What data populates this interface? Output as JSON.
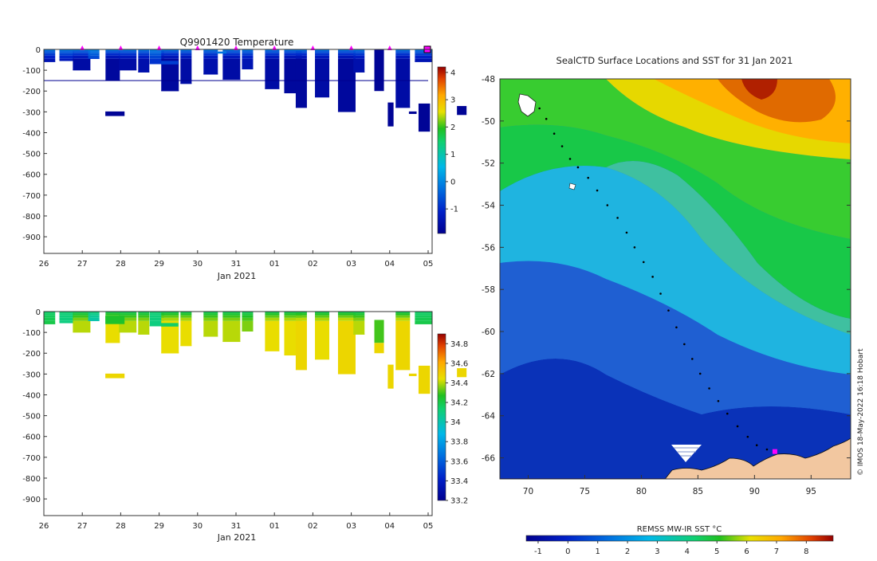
{
  "chart_data": [
    {
      "type": "heatmap",
      "panel": "temperature-profile",
      "title": "Q9901420  Temperature",
      "xlabel": "Jan 2021",
      "x_ticks": [
        "26",
        "27",
        "28",
        "29",
        "30",
        "31",
        "01",
        "02",
        "03",
        "04",
        "05"
      ],
      "y_ticks": [
        0,
        -100,
        -200,
        -300,
        -400,
        -500,
        -600,
        -700,
        -800,
        -900
      ],
      "ylim": [
        -980,
        0
      ],
      "colorbar": {
        "ticks": [
          "-1",
          "0",
          "1",
          "2",
          "3",
          "4"
        ],
        "range": [
          -1.9,
          4.2
        ]
      },
      "profile_markers_day": [
        1,
        2,
        3,
        4,
        5,
        6,
        7,
        8,
        9,
        10
      ],
      "profiles": [
        {
          "day": 0.15,
          "bottom": -60,
          "value": -1.4
        },
        {
          "day": 0.55,
          "bottom": -55,
          "value": -1.3
        },
        {
          "day": 0.9,
          "bottom": -100,
          "value": -1.6
        },
        {
          "day": 1.3,
          "bottom": -45,
          "value": -0.8
        },
        {
          "day": 1.75,
          "bottom": -150,
          "value": -1.7
        },
        {
          "day": 2.1,
          "bottom": -100,
          "value": -1.6
        },
        {
          "day": 2.6,
          "bottom": -110,
          "value": -1.5
        },
        {
          "day": 2.9,
          "bottom": -70,
          "value": -0.9
        },
        {
          "day": 3.2,
          "bottom": -200,
          "value": -1.7
        },
        {
          "day": 3.7,
          "bottom": -165,
          "value": -1.6
        },
        {
          "day": 4.3,
          "bottom": -120,
          "value": -1.5
        },
        {
          "day": 4.8,
          "bottom": -145,
          "value": -1.6
        },
        {
          "day": 5.3,
          "bottom": -95,
          "value": -1.4
        },
        {
          "day": 5.9,
          "bottom": -190,
          "value": -1.6
        },
        {
          "day": 6.4,
          "bottom": -210,
          "value": -1.7
        },
        {
          "day": 6.7,
          "bottom": -280,
          "value": -1.7
        },
        {
          "day": 7.2,
          "bottom": -230,
          "value": -1.6
        },
        {
          "day": 7.8,
          "bottom": -300,
          "value": -1.7
        },
        {
          "day": 8.2,
          "bottom": -110,
          "value": -1.5
        },
        {
          "day": 9.3,
          "bottom": -280,
          "value": -1.6
        },
        {
          "day": 9.8,
          "bottom": -60,
          "value": -1.4
        }
      ],
      "blocks": [
        {
          "day0": 1.6,
          "day1": 2.1,
          "top": -298,
          "bottom": -320,
          "value": -1.8
        },
        {
          "day0": 8.6,
          "day1": 8.85,
          "top": 0,
          "bottom": -200,
          "value": -1.8
        },
        {
          "day0": 8.95,
          "day1": 9.1,
          "top": -255,
          "bottom": -370,
          "value": -1.8
        },
        {
          "day0": 9.5,
          "day1": 9.7,
          "top": -298,
          "bottom": -310,
          "value": -1.8
        },
        {
          "day0": 9.75,
          "day1": 10.05,
          "top": -260,
          "bottom": -395,
          "value": -1.8
        },
        {
          "day0": 10.75,
          "day1": 11.0,
          "top": -272,
          "bottom": -315,
          "value": -1.8
        },
        {
          "day0": 4.5,
          "day1": 4.75,
          "top": -10,
          "bottom": -20,
          "value": -0.2
        },
        {
          "day0": 3.05,
          "day1": 3.5,
          "top": -55,
          "bottom": -72,
          "value": -0.8
        }
      ],
      "reference_line_depth": -150
    },
    {
      "type": "heatmap",
      "panel": "salinity-profile",
      "xlabel": "Jan 2021",
      "x_ticks": [
        "26",
        "27",
        "28",
        "29",
        "30",
        "31",
        "01",
        "02",
        "03",
        "04",
        "05"
      ],
      "y_ticks": [
        0,
        -100,
        -200,
        -300,
        -400,
        -500,
        -600,
        -700,
        -800,
        -900
      ],
      "ylim": [
        -980,
        0
      ],
      "colorbar": {
        "ticks": [
          "33.2",
          "33.4",
          "33.6",
          "33.8",
          "34",
          "34.2",
          "34.4",
          "34.6",
          "34.8"
        ],
        "range": [
          33.2,
          34.9
        ]
      },
      "profiles": [
        {
          "day": 0.15,
          "bottom": -60,
          "value": 34.2
        },
        {
          "day": 0.55,
          "bottom": -55,
          "value": 34.1
        },
        {
          "day": 0.9,
          "bottom": -100,
          "value": 34.4
        },
        {
          "day": 1.3,
          "bottom": -45,
          "value": 34.0
        },
        {
          "day": 1.75,
          "bottom": -150,
          "value": 34.45
        },
        {
          "day": 2.1,
          "bottom": -100,
          "value": 34.4
        },
        {
          "day": 2.6,
          "bottom": -110,
          "value": 34.4
        },
        {
          "day": 2.9,
          "bottom": -70,
          "value": 34.1
        },
        {
          "day": 3.2,
          "bottom": -200,
          "value": 34.45
        },
        {
          "day": 3.7,
          "bottom": -165,
          "value": 34.45
        },
        {
          "day": 4.3,
          "bottom": -120,
          "value": 34.4
        },
        {
          "day": 4.8,
          "bottom": -145,
          "value": 34.4
        },
        {
          "day": 5.3,
          "bottom": -95,
          "value": 34.35
        },
        {
          "day": 5.9,
          "bottom": -190,
          "value": 34.45
        },
        {
          "day": 6.4,
          "bottom": -210,
          "value": 34.45
        },
        {
          "day": 6.7,
          "bottom": -280,
          "value": 34.47
        },
        {
          "day": 7.2,
          "bottom": -230,
          "value": 34.45
        },
        {
          "day": 7.8,
          "bottom": -300,
          "value": 34.47
        },
        {
          "day": 8.2,
          "bottom": -110,
          "value": 34.4
        },
        {
          "day": 9.3,
          "bottom": -280,
          "value": 34.47
        },
        {
          "day": 9.8,
          "bottom": -60,
          "value": 34.2
        }
      ],
      "blocks": [
        {
          "day0": 1.6,
          "day1": 2.1,
          "top": -298,
          "bottom": -320,
          "value": 34.47
        },
        {
          "day0": 8.6,
          "day1": 8.85,
          "top": -150,
          "bottom": -200,
          "value": 34.47
        },
        {
          "day0": 8.6,
          "day1": 8.85,
          "top": -40,
          "bottom": -150,
          "value": 34.3
        },
        {
          "day0": 8.95,
          "day1": 9.1,
          "top": -255,
          "bottom": -370,
          "value": 34.47
        },
        {
          "day0": 9.5,
          "day1": 9.7,
          "top": -298,
          "bottom": -310,
          "value": 34.47
        },
        {
          "day0": 9.75,
          "day1": 10.05,
          "top": -260,
          "bottom": -395,
          "value": 34.47
        },
        {
          "day0": 10.75,
          "day1": 11.0,
          "top": -272,
          "bottom": -315,
          "value": 34.47
        },
        {
          "day0": 3.05,
          "day1": 3.5,
          "top": -55,
          "bottom": -72,
          "value": 34.15
        },
        {
          "day0": 1.6,
          "day1": 2.1,
          "top": -20,
          "bottom": -60,
          "value": 34.25
        }
      ]
    },
    {
      "type": "heatmap",
      "panel": "sst-map",
      "title": "SealCTD Surface Locations and SST for 31 Jan 2021",
      "x_ticks": [
        70,
        75,
        80,
        85,
        90,
        95
      ],
      "y_ticks": [
        -48,
        -50,
        -52,
        -54,
        -56,
        -58,
        -60,
        -62,
        -64,
        -66
      ],
      "xlim": [
        67.5,
        98.5
      ],
      "ylim": [
        -67,
        -48
      ],
      "colorbar": {
        "label": "REMSS MW-IR SST °C",
        "ticks": [
          "-1",
          "0",
          "1",
          "2",
          "3",
          "4",
          "5",
          "6",
          "7",
          "8"
        ],
        "range": [
          -1.4,
          8.9
        ]
      },
      "track": [
        [
          71.0,
          -49.4
        ],
        [
          71.6,
          -49.9
        ],
        [
          72.3,
          -50.6
        ],
        [
          73.0,
          -51.2
        ],
        [
          73.7,
          -51.8
        ],
        [
          74.4,
          -52.2
        ],
        [
          75.3,
          -52.7
        ],
        [
          76.1,
          -53.3
        ],
        [
          77.0,
          -54.0
        ],
        [
          77.9,
          -54.6
        ],
        [
          78.7,
          -55.3
        ],
        [
          79.4,
          -56.0
        ],
        [
          80.2,
          -56.7
        ],
        [
          81.0,
          -57.4
        ],
        [
          81.7,
          -58.2
        ],
        [
          82.4,
          -59.0
        ],
        [
          83.1,
          -59.8
        ],
        [
          83.8,
          -60.6
        ],
        [
          84.5,
          -61.3
        ],
        [
          85.2,
          -62.0
        ],
        [
          86.0,
          -62.7
        ],
        [
          86.8,
          -63.3
        ],
        [
          87.6,
          -63.9
        ],
        [
          88.5,
          -64.5
        ],
        [
          89.4,
          -65.0
        ],
        [
          90.2,
          -65.4
        ],
        [
          91.1,
          -65.6
        ],
        [
          91.8,
          -65.7
        ]
      ],
      "latest_position": [
        91.8,
        -65.7
      ],
      "credit": "© IMOS 18-May-2022 16:18 Hobart"
    }
  ]
}
